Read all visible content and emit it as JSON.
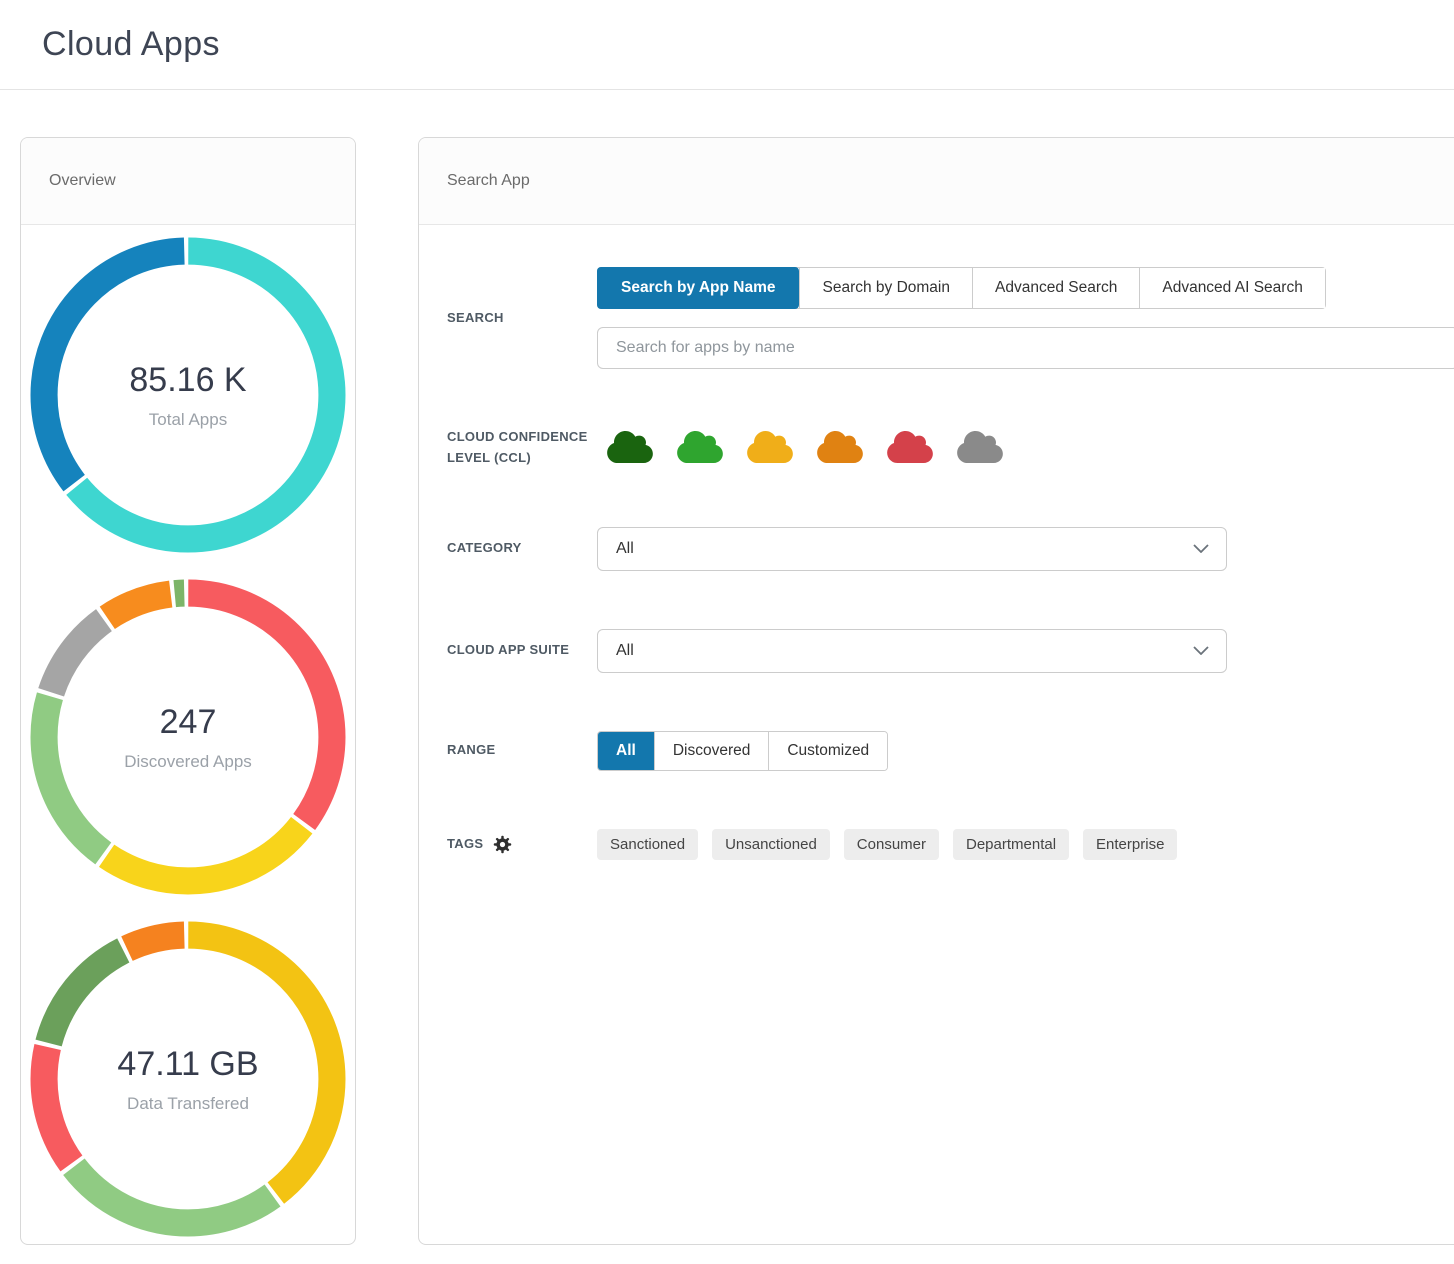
{
  "page": {
    "title": "Cloud Apps"
  },
  "accent_color": "#1377ad",
  "overview_panel": {
    "title": "Overview"
  },
  "search_panel": {
    "title": "Search App",
    "search": {
      "label": "SEARCH",
      "tabs": [
        {
          "label": "Search by App Name",
          "active": true
        },
        {
          "label": "Search by Domain",
          "active": false
        },
        {
          "label": "Advanced Search",
          "active": false
        },
        {
          "label": "Advanced AI Search",
          "active": false
        }
      ],
      "placeholder": "Search for apps by name"
    },
    "ccl": {
      "label": "CLOUD CONFIDENCE LEVEL (CCL)",
      "levels": [
        {
          "name": "dark-green-cloud",
          "color": "#1a640f"
        },
        {
          "name": "green-cloud",
          "color": "#2fa52f"
        },
        {
          "name": "yellow-cloud",
          "color": "#f0ae19"
        },
        {
          "name": "orange-cloud",
          "color": "#e08212"
        },
        {
          "name": "red-cloud",
          "color": "#d4414a"
        },
        {
          "name": "gray-cloud",
          "color": "#8a8a8a"
        }
      ]
    },
    "category": {
      "label": "CATEGORY",
      "value": "All"
    },
    "suite": {
      "label": "CLOUD APP SUITE",
      "value": "All"
    },
    "range": {
      "label": "RANGE",
      "options": [
        {
          "label": "All",
          "active": true
        },
        {
          "label": "Discovered",
          "active": false
        },
        {
          "label": "Customized",
          "active": false
        }
      ]
    },
    "tags": {
      "label": "TAGS",
      "items": [
        "Sanctioned",
        "Unsanctioned",
        "Consumer",
        "Departmental",
        "Enterprise"
      ]
    }
  },
  "chart_data": [
    {
      "type": "pie",
      "title": "Total Apps",
      "center_value": "85.16 K",
      "center_label": "Total Apps",
      "segments": [
        {
          "label": "teal",
          "color": "#3ed6d0",
          "pct": 64.5
        },
        {
          "label": "blue",
          "color": "#1583bd",
          "pct": 35.5
        }
      ]
    },
    {
      "type": "pie",
      "title": "Discovered Apps",
      "center_value": "247",
      "center_label": "Discovered Apps",
      "segments": [
        {
          "label": "red",
          "color": "#f75b5f",
          "pct": 35.5
        },
        {
          "label": "yellow",
          "color": "#f8d41b",
          "pct": 24.5
        },
        {
          "label": "light-green",
          "color": "#90cb83",
          "pct": 20
        },
        {
          "label": "gray",
          "color": "#a5a5a5",
          "pct": 10.5
        },
        {
          "label": "orange",
          "color": "#f78c1e",
          "pct": 8
        },
        {
          "label": "green",
          "color": "#7db569",
          "pct": 1.5
        }
      ]
    },
    {
      "type": "pie",
      "title": "Data Transfered",
      "center_value": "47.11 GB",
      "center_label": "Data Transfered",
      "segments": [
        {
          "label": "yellow",
          "color": "#f3c313",
          "pct": 40
        },
        {
          "label": "light-green",
          "color": "#90cb83",
          "pct": 25
        },
        {
          "label": "red",
          "color": "#f75b5f",
          "pct": 14
        },
        {
          "label": "dark-green",
          "color": "#6ba05b",
          "pct": 14
        },
        {
          "label": "orange",
          "color": "#f5821f",
          "pct": 7
        }
      ]
    }
  ]
}
